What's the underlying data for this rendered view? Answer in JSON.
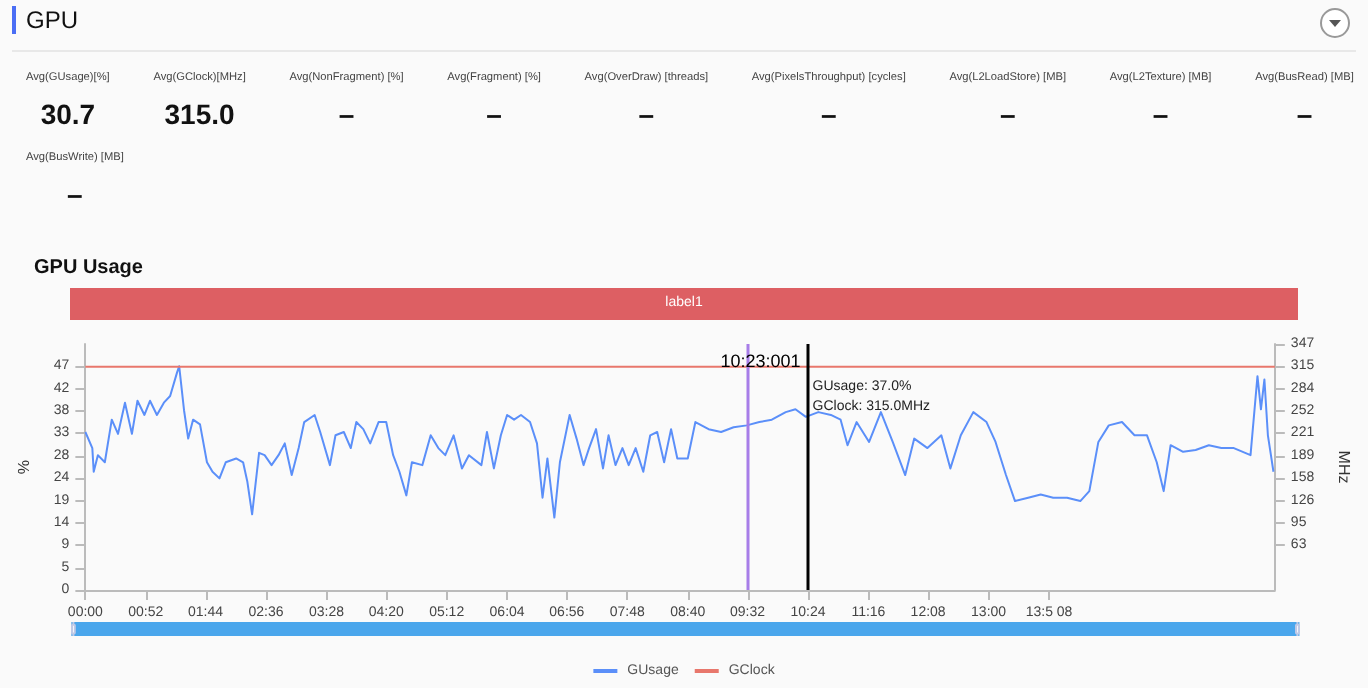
{
  "chart_data": [
    {
      "type": "other",
      "title": "GPU",
      "annotations": [
        "Avg(GUsage)[%]",
        "30.7",
        "Avg(GClock)[MHz]",
        "315.0",
        "Avg(NonFragment) [%]",
        "–",
        "Avg(Fragment) [%]",
        "–",
        "Avg(OverDraw) [threads]",
        "–",
        "Avg(PixelsThroughput) [cycles]",
        "–",
        "Avg(L2LoadStore) [MB]",
        "–",
        "Avg(L2Texture) [MB]",
        "–",
        "Avg(BusRead) [MB]",
        "–",
        "Avg(BusWrite) [MB]",
        "–"
      ]
    },
    {
      "type": "line",
      "title": "GPU Usage",
      "ylabel": "%",
      "y2label": "MHz",
      "legend": "bottom",
      "grid": false,
      "xlim": [
        0,
        17.12
      ],
      "xticks": [
        {
          "value": 0,
          "label": "00:00"
        },
        {
          "value": 0.87,
          "label": "00:52"
        },
        {
          "value": 1.73,
          "label": "01:44"
        },
        {
          "value": 2.6,
          "label": "02:36"
        },
        {
          "value": 3.47,
          "label": "03:28"
        },
        {
          "value": 4.33,
          "label": "04:20"
        },
        {
          "value": 5.2,
          "label": "05:12"
        },
        {
          "value": 6.07,
          "label": "06:04"
        },
        {
          "value": 6.93,
          "label": "06:56"
        },
        {
          "value": 7.8,
          "label": "07:48"
        },
        {
          "value": 8.67,
          "label": "08:40"
        },
        {
          "value": 9.53,
          "label": "09:32"
        },
        {
          "value": 10.4,
          "label": "10:24"
        },
        {
          "value": 11.27,
          "label": "11:16"
        },
        {
          "value": 12.13,
          "label": "12:08"
        },
        {
          "value": 13,
          "label": "13:00"
        },
        {
          "value": 13.87,
          "label": "13:5 08"
        }
      ],
      "ylim": [
        0,
        52
      ],
      "yticks": [
        0,
        {
          "value": 4.73,
          "label": "5"
        },
        {
          "value": 9.45,
          "label": "9"
        },
        {
          "value": 14.18,
          "label": "14"
        },
        {
          "value": 18.9,
          "label": "19"
        },
        {
          "value": 23.6,
          "label": "24"
        },
        {
          "value": 28.4,
          "label": "28"
        },
        {
          "value": 33.1,
          "label": "33"
        },
        {
          "value": 37.8,
          "label": "38"
        },
        {
          "value": 42.5,
          "label": "42"
        },
        {
          "value": 47.3,
          "label": "47"
        }
      ],
      "y2lim": [
        0,
        347
      ],
      "y2ticks": [
        {
          "value": 63.1,
          "label": "63"
        },
        {
          "value": 94.6,
          "label": "95"
        },
        {
          "value": 126.2,
          "label": "126"
        },
        {
          "value": 157.7,
          "label": "158"
        },
        {
          "value": 189.3,
          "label": "189"
        },
        {
          "value": 220.8,
          "label": "221"
        },
        {
          "value": 252.4,
          "label": "252"
        },
        {
          "value": 283.9,
          "label": "284"
        },
        {
          "value": 315.5,
          "label": "315"
        },
        347
      ],
      "ref_lines": [
        {
          "axis": "x",
          "value": 9.53,
          "color": "#a77de8"
        },
        {
          "axis": "x",
          "value": 10.38,
          "label": "10:23:001",
          "color": "#000000"
        }
      ],
      "annotations": [
        "label1",
        "GUsage: 37.0%",
        "GClock: 315.0MHz"
      ],
      "series": [
        {
          "name": "GUsage",
          "color": "#5b8ff9",
          "x": [
            0,
            0.1,
            0.12,
            0.18,
            0.28,
            0.38,
            0.47,
            0.57,
            0.67,
            0.75,
            0.85,
            0.93,
            1.03,
            1.13,
            1.22,
            1.32,
            1.35,
            1.42,
            1.48,
            1.55,
            1.65,
            1.75,
            1.83,
            1.93,
            2.02,
            2.17,
            2.27,
            2.33,
            2.4,
            2.5,
            2.58,
            2.68,
            2.78,
            2.87,
            2.97,
            3.07,
            3.15,
            3.3,
            3.38,
            3.52,
            3.6,
            3.72,
            3.82,
            3.9,
            4,
            4.1,
            4.22,
            4.33,
            4.43,
            4.52,
            4.62,
            4.7,
            4.85,
            4.97,
            5.08,
            5.18,
            5.3,
            5.42,
            5.52,
            5.7,
            5.78,
            5.88,
            5.98,
            6.07,
            6.17,
            6.27,
            6.4,
            6.5,
            6.58,
            6.65,
            6.75,
            6.83,
            6.97,
            7.07,
            7.17,
            7.25,
            7.35,
            7.45,
            7.53,
            7.63,
            7.73,
            7.82,
            7.92,
            8.03,
            8.13,
            8.23,
            8.33,
            8.43,
            8.52,
            8.67,
            8.78,
            8.97,
            9.15,
            9.33,
            9.52,
            9.7,
            9.88,
            10.08,
            10.22,
            10.37,
            10.55,
            10.73,
            10.87,
            10.97,
            11.1,
            11.28,
            11.45,
            11.62,
            11.8,
            11.93,
            12.12,
            12.32,
            12.45,
            12.6,
            12.78,
            12.97,
            13.1,
            13.25,
            13.38,
            13.57,
            13.75,
            13.93,
            14.13,
            14.32,
            14.45,
            14.58,
            14.73,
            14.92,
            15.1,
            15.28,
            15.42,
            15.52,
            15.62,
            15.8,
            15.98,
            16.17,
            16.35,
            16.53,
            16.77,
            16.87,
            16.92,
            16.97,
            17.02,
            17.1
          ],
          "values": [
            33.4,
            30,
            25,
            28.5,
            27,
            36,
            33,
            39.6,
            33,
            40,
            37,
            40,
            37,
            39.6,
            41,
            46,
            47.3,
            38,
            32,
            36,
            35,
            27,
            25,
            23.6,
            27,
            27.8,
            27,
            23,
            16,
            29,
            28.5,
            26.4,
            28.5,
            31,
            24.3,
            30,
            35.5,
            37,
            33.4,
            26.4,
            32.7,
            33.4,
            30,
            35.5,
            34,
            31,
            35.5,
            35.5,
            28.5,
            25,
            20,
            27,
            26.4,
            32.7,
            30,
            28.5,
            32.7,
            25.7,
            28.5,
            26.4,
            33.4,
            25.7,
            32.7,
            37,
            36,
            37,
            35.5,
            31,
            19.5,
            27.8,
            15.3,
            27,
            37,
            32,
            26.4,
            30,
            34,
            25.7,
            32.7,
            26.4,
            30,
            26.4,
            30,
            25,
            32.7,
            33.4,
            27,
            34,
            27.8,
            27.8,
            35.5,
            34,
            33.4,
            34.4,
            34.8,
            35.5,
            36,
            37.6,
            38.2,
            36.6,
            37.6,
            37,
            36,
            30.6,
            35.5,
            31.3,
            37.6,
            31.3,
            24.3,
            32,
            30,
            32.7,
            25.7,
            32.7,
            37.6,
            35.5,
            31.3,
            24.3,
            18.8,
            19.5,
            20.2,
            19.5,
            19.5,
            18.8,
            20.9,
            31.3,
            34.8,
            35.5,
            32.7,
            32.7,
            27,
            20.9,
            30.6,
            29.2,
            29.6,
            30.6,
            30,
            30,
            28.5,
            45.2,
            38.2,
            44.5,
            32.7,
            25
          ]
        },
        {
          "name": "GClock",
          "color": "#e8776c",
          "axis": "y2",
          "x": [
            0,
            17.12
          ],
          "values": [
            315,
            315
          ]
        }
      ]
    }
  ]
}
